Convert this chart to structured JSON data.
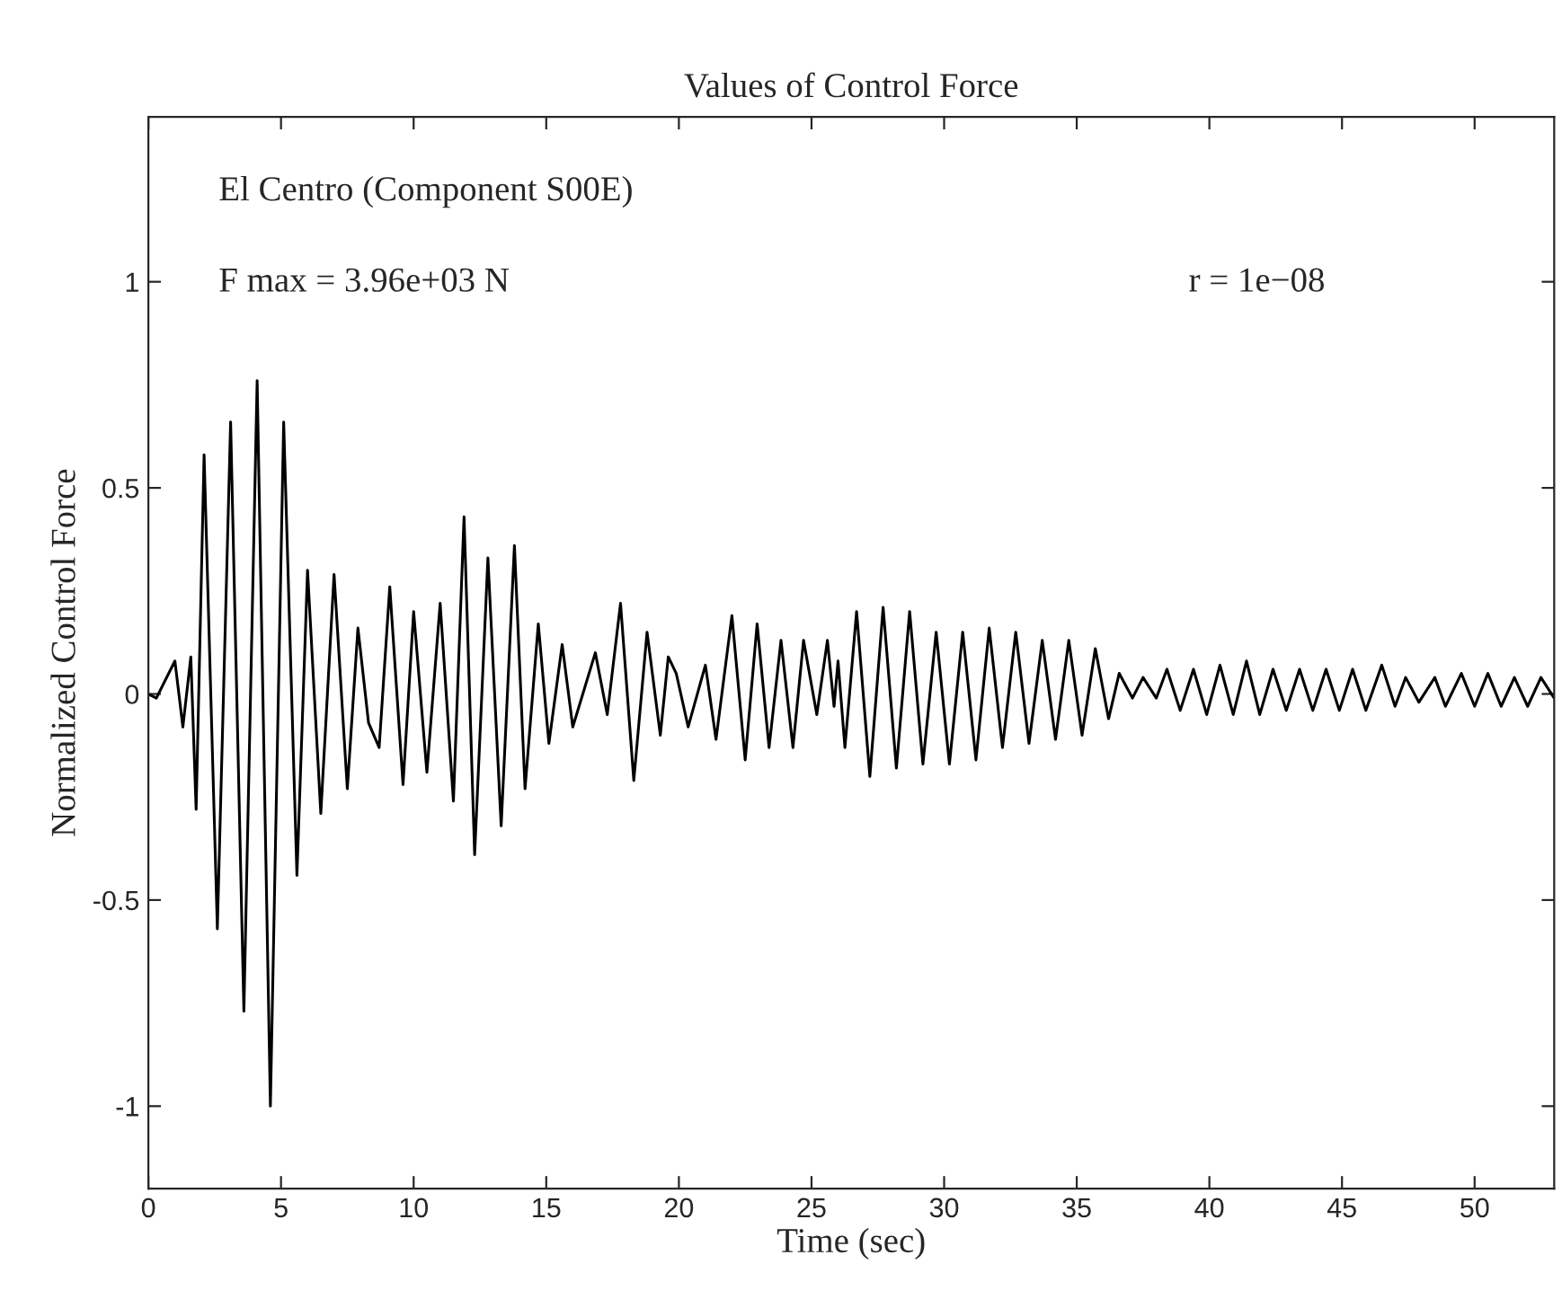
{
  "chart_data": {
    "type": "line",
    "title": "Values of Control Force",
    "xlabel": "Time (sec)",
    "ylabel": "Normalized Control Force",
    "annotations": [
      "El Centro (Component S00E)",
      "F max = 3.96e+03 N",
      "r = 1e−08"
    ],
    "xlim": [
      0,
      53
    ],
    "ylim": [
      -1.2,
      1.4
    ],
    "xticks": [
      0,
      5,
      10,
      15,
      20,
      25,
      30,
      35,
      40,
      45,
      50
    ],
    "yticks": [
      -1,
      -0.5,
      0,
      0.5,
      1
    ],
    "grid": false,
    "legend": false,
    "marker": "none",
    "line_style": "solid",
    "series": [
      {
        "color": "#000000",
        "x": [
          0,
          0.3,
          1.0,
          1.3,
          1.6,
          1.8,
          2.1,
          2.6,
          3.1,
          3.6,
          4.1,
          4.6,
          5.1,
          5.6,
          6.0,
          6.5,
          7.0,
          7.5,
          7.9,
          8.3,
          8.7,
          9.1,
          9.6,
          10.0,
          10.5,
          11.0,
          11.5,
          11.9,
          12.3,
          12.8,
          13.3,
          13.8,
          14.2,
          14.7,
          15.1,
          15.6,
          16.0,
          16.85,
          17.3,
          17.8,
          18.3,
          18.8,
          19.3,
          19.6,
          19.9,
          20.35,
          21.0,
          21.4,
          22.0,
          22.5,
          22.95,
          23.4,
          23.85,
          24.3,
          24.7,
          25.2,
          25.6,
          25.85,
          26.0,
          26.26,
          26.7,
          27.2,
          27.7,
          28.2,
          28.7,
          29.2,
          29.7,
          30.2,
          30.7,
          31.2,
          31.7,
          32.2,
          32.7,
          33.2,
          33.7,
          34.2,
          34.7,
          35.2,
          35.7,
          36.2,
          36.6,
          37.1,
          37.5,
          38.0,
          38.4,
          38.9,
          39.4,
          39.9,
          40.4,
          40.9,
          41.4,
          41.9,
          42.4,
          42.9,
          43.4,
          43.9,
          44.4,
          44.9,
          45.4,
          45.9,
          46.5,
          47.0,
          47.4,
          47.9,
          48.5,
          48.9,
          49.5,
          50.0,
          50.5,
          51.0,
          51.5,
          52.0,
          52.5,
          53.0
        ],
        "values": [
          0,
          -0.01,
          0.08,
          -0.08,
          0.09,
          -0.28,
          0.58,
          -0.57,
          0.66,
          -0.77,
          0.76,
          -1.0,
          0.66,
          -0.44,
          0.3,
          -0.29,
          0.29,
          -0.23,
          0.16,
          -0.07,
          -0.13,
          0.26,
          -0.22,
          0.2,
          -0.19,
          0.22,
          -0.26,
          0.43,
          -0.39,
          0.33,
          -0.32,
          0.36,
          -0.23,
          0.17,
          -0.12,
          0.12,
          -0.08,
          0.1,
          -0.05,
          0.22,
          -0.21,
          0.15,
          -0.1,
          0.09,
          0.05,
          -0.08,
          0.07,
          -0.11,
          0.19,
          -0.16,
          0.17,
          -0.13,
          0.13,
          -0.13,
          0.13,
          -0.05,
          0.13,
          -0.03,
          0.08,
          -0.13,
          0.2,
          -0.2,
          0.21,
          -0.18,
          0.2,
          -0.17,
          0.15,
          -0.17,
          0.15,
          -0.16,
          0.16,
          -0.13,
          0.15,
          -0.12,
          0.13,
          -0.11,
          0.13,
          -0.1,
          0.11,
          -0.06,
          0.05,
          -0.01,
          0.04,
          -0.01,
          0.06,
          -0.04,
          0.06,
          -0.05,
          0.07,
          -0.05,
          0.08,
          -0.05,
          0.06,
          -0.04,
          0.06,
          -0.04,
          0.06,
          -0.04,
          0.06,
          -0.04,
          0.07,
          -0.03,
          0.04,
          -0.02,
          0.04,
          -0.03,
          0.05,
          -0.03,
          0.05,
          -0.03,
          0.04,
          -0.03,
          0.04,
          -0.01
        ]
      }
    ]
  }
}
